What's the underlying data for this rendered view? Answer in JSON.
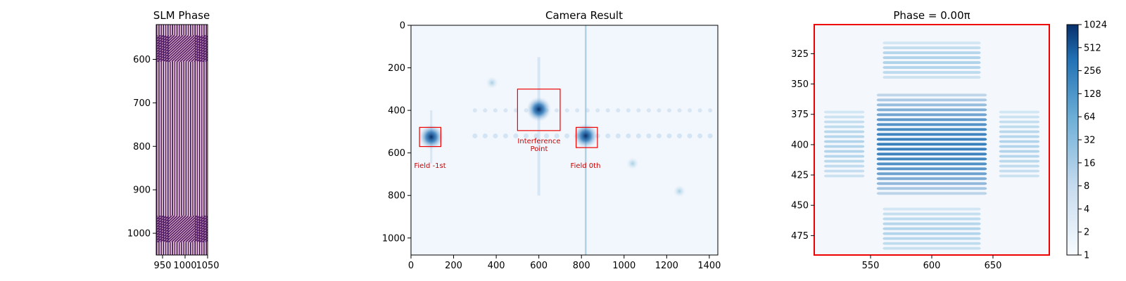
{
  "chart_data": [
    {
      "type": "heatmap",
      "title": "SLM Phase",
      "xlabel": "",
      "ylabel": "",
      "xlim": [
        936,
        1050
      ],
      "ylim": [
        1050,
        520
      ],
      "x_ticks": [
        950,
        1000,
        1050
      ],
      "x_tick_labels": [
        "950",
        "1000",
        "1050"
      ],
      "y_ticks": [
        600,
        700,
        800,
        900,
        1000
      ],
      "y_tick_labels": [
        "600",
        "700",
        "800",
        "900",
        "1000"
      ],
      "pattern": "vertical-stripes",
      "patches": [
        {
          "x": [
            964,
            1022
          ],
          "y": [
            545,
            605
          ]
        },
        {
          "x": [
            964,
            1022
          ],
          "y": [
            960,
            1020
          ]
        }
      ],
      "colors": {
        "stripe_a": "#5a1f6b",
        "stripe_b": "#f2d0d8",
        "stripe_c": "#2a1550"
      },
      "grid": false
    },
    {
      "type": "heatmap",
      "title": "Camera Result",
      "xlabel": "",
      "ylabel": "",
      "xlim": [
        0,
        1440
      ],
      "ylim": [
        1080,
        0
      ],
      "x_ticks": [
        0,
        200,
        400,
        600,
        800,
        1000,
        1200,
        1400
      ],
      "x_tick_labels": [
        "0",
        "200",
        "400",
        "600",
        "800",
        "1000",
        "1200",
        "1400"
      ],
      "y_ticks": [
        0,
        200,
        400,
        600,
        800,
        1000
      ],
      "y_tick_labels": [
        "0",
        "200",
        "400",
        "600",
        "800",
        "1000"
      ],
      "colormap": "Blues",
      "spots": [
        {
          "x": 95,
          "y": 525,
          "intensity": 0.9
        },
        {
          "x": 600,
          "y": 395,
          "intensity": 0.85
        },
        {
          "x": 820,
          "y": 520,
          "intensity": 1.0
        },
        {
          "x": 380,
          "y": 270,
          "intensity": 0.2
        },
        {
          "x": 1040,
          "y": 650,
          "intensity": 0.18
        },
        {
          "x": 1260,
          "y": 780,
          "intensity": 0.15
        }
      ],
      "boxes": [
        {
          "label": "Field -1st",
          "x": [
            40,
            140
          ],
          "y": [
            480,
            570
          ]
        },
        {
          "label": "Interference\nPoint",
          "x": [
            500,
            700
          ],
          "y": [
            300,
            495
          ]
        },
        {
          "label": "Field 0th",
          "x": [
            775,
            875
          ],
          "y": [
            480,
            575
          ]
        }
      ],
      "annotations": {
        "field_minus_1": "Field -1st",
        "interference_1": "Interference",
        "interference_2": "Point",
        "field_0": "Field 0th"
      },
      "grid": false
    },
    {
      "type": "heatmap",
      "title": "Phase = 0.00π",
      "xlabel": "",
      "ylabel": "",
      "xlim": [
        504,
        696
      ],
      "ylim": [
        491,
        301
      ],
      "x_ticks": [
        550,
        600,
        650
      ],
      "x_tick_labels": [
        "550",
        "600",
        "650"
      ],
      "y_ticks": [
        325,
        350,
        375,
        400,
        425,
        450,
        475
      ],
      "y_tick_labels": [
        "325",
        "350",
        "375",
        "400",
        "425",
        "450",
        "475"
      ],
      "colormap": "Blues",
      "color_scale": "log2",
      "colorbar_ticks": [
        1,
        2,
        4,
        8,
        16,
        32,
        64,
        128,
        256,
        512,
        1024
      ],
      "colorbar_tick_labels": [
        "1",
        "2",
        "4",
        "8",
        "16",
        "32",
        "64",
        "128",
        "256",
        "512",
        "1024"
      ],
      "fringe_regions": [
        {
          "x": [
            560,
            640
          ],
          "y": [
            315,
            345
          ],
          "level": 0.35
        },
        {
          "x": [
            555,
            645
          ],
          "y": [
            358,
            440
          ],
          "level": 0.85
        },
        {
          "x": [
            512,
            545
          ],
          "y": [
            372,
            428
          ],
          "level": 0.3
        },
        {
          "x": [
            655,
            688
          ],
          "y": [
            372,
            428
          ],
          "level": 0.3
        },
        {
          "x": [
            560,
            640
          ],
          "y": [
            452,
            488
          ],
          "level": 0.3
        }
      ],
      "border_color": "#ee0000",
      "grid": false
    }
  ]
}
